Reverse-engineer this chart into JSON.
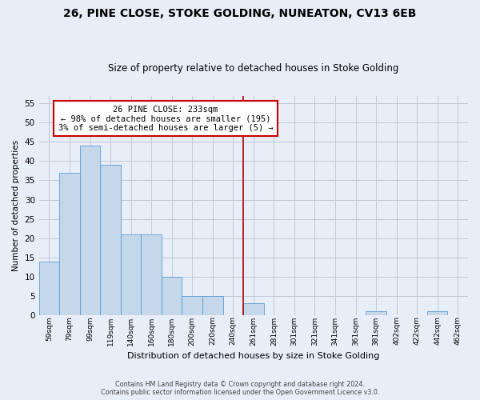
{
  "title": "26, PINE CLOSE, STOKE GOLDING, NUNEATON, CV13 6EB",
  "subtitle": "Size of property relative to detached houses in Stoke Golding",
  "xlabel": "Distribution of detached houses by size in Stoke Golding",
  "ylabel": "Number of detached properties",
  "bin_labels": [
    "59sqm",
    "79sqm",
    "99sqm",
    "119sqm",
    "140sqm",
    "160sqm",
    "180sqm",
    "200sqm",
    "220sqm",
    "240sqm",
    "261sqm",
    "281sqm",
    "301sqm",
    "321sqm",
    "341sqm",
    "361sqm",
    "381sqm",
    "402sqm",
    "422sqm",
    "442sqm",
    "462sqm"
  ],
  "bar_heights": [
    14,
    37,
    44,
    39,
    21,
    21,
    10,
    5,
    5,
    0,
    3,
    0,
    0,
    0,
    0,
    0,
    1,
    0,
    0,
    1,
    0
  ],
  "bar_color": "#c5d8ea",
  "bar_edge_color": "#5b9bd5",
  "ylim": [
    0,
    57
  ],
  "yticks": [
    0,
    5,
    10,
    15,
    20,
    25,
    30,
    35,
    40,
    45,
    50,
    55
  ],
  "vline_x_idx": 9.5,
  "vline_color": "#aa0000",
  "annotation_text": "26 PINE CLOSE: 233sqm\n← 98% of detached houses are smaller (195)\n3% of semi-detached houses are larger (5) →",
  "annotation_box_color": "#ffffff",
  "annotation_box_edge": "#cc0000",
  "footer_line1": "Contains HM Land Registry data © Crown copyright and database right 2024.",
  "footer_line2": "Contains public sector information licensed under the Open Government Licence v3.0.",
  "background_color": "#e8eef8",
  "grid_color": "#c0c8d8",
  "title_fontsize": 10,
  "subtitle_fontsize": 8.5
}
